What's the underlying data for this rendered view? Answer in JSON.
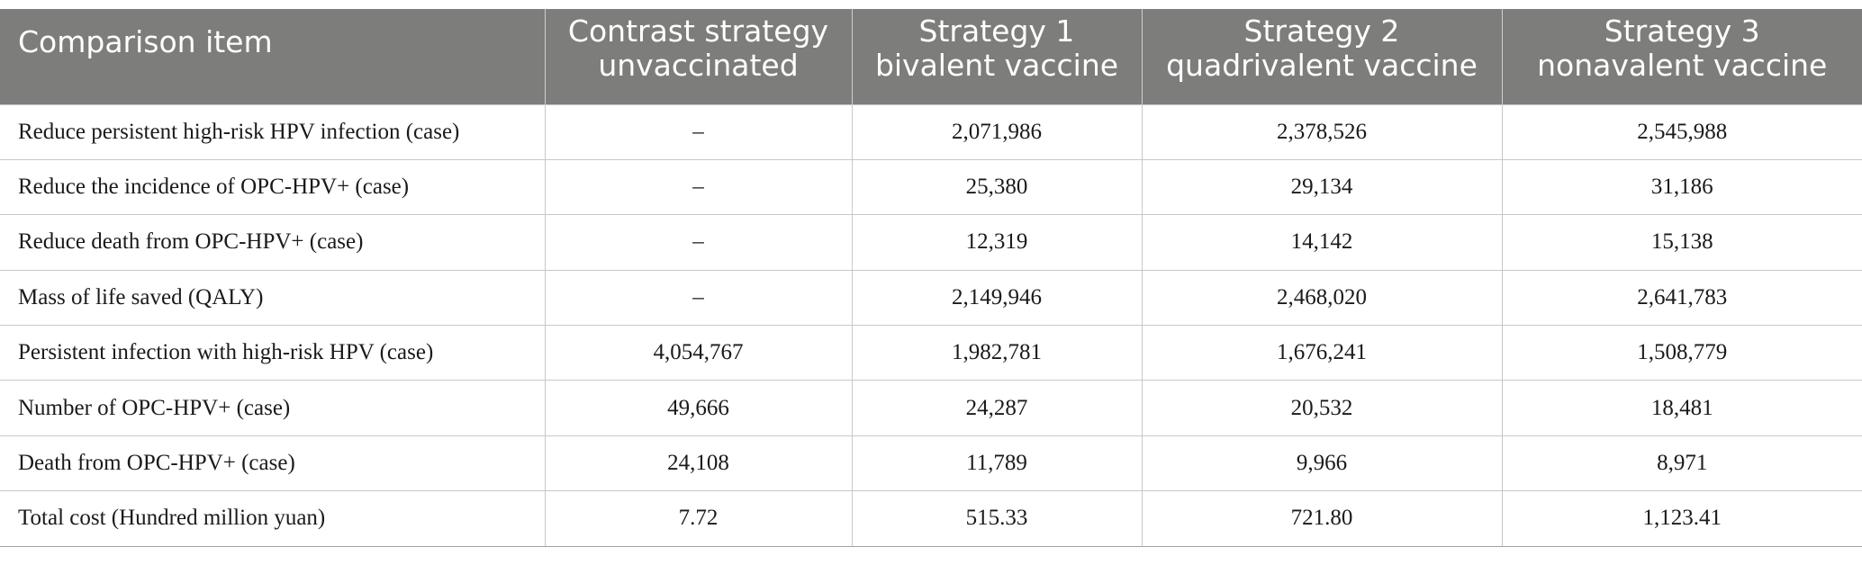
{
  "table": {
    "headers": [
      [
        "Comparison item"
      ],
      [
        "Contrast strategy",
        "unvaccinated"
      ],
      [
        "Strategy 1",
        "bivalent vaccine"
      ],
      [
        "Strategy 2",
        "quadrivalent vaccine"
      ],
      [
        "Strategy 3",
        "nonavalent vaccine"
      ]
    ],
    "rows": [
      [
        "Reduce persistent high-risk HPV infection (case)",
        "–",
        "2,071,986",
        "2,378,526",
        "2,545,988"
      ],
      [
        "Reduce the incidence of OPC-HPV+ (case)",
        "–",
        "25,380",
        "29,134",
        "31,186"
      ],
      [
        "Reduce death from OPC-HPV+ (case)",
        "–",
        "12,319",
        "14,142",
        "15,138"
      ],
      [
        "Mass of life saved (QALY)",
        "–",
        "2,149,946",
        "2,468,020",
        "2,641,783"
      ],
      [
        "Persistent infection with high-risk HPV (case)",
        "4,054,767",
        "1,982,781",
        "1,676,241",
        "1,508,779"
      ],
      [
        "Number of OPC-HPV+ (case)",
        "49,666",
        "24,287",
        "20,532",
        "18,481"
      ],
      [
        "Death from OPC-HPV+ (case)",
        "24,108",
        "11,789",
        "9,966",
        "8,971"
      ],
      [
        "Total cost (Hundred million yuan)",
        "7.72",
        "515.33",
        "721.80",
        "1,123.41"
      ]
    ]
  }
}
